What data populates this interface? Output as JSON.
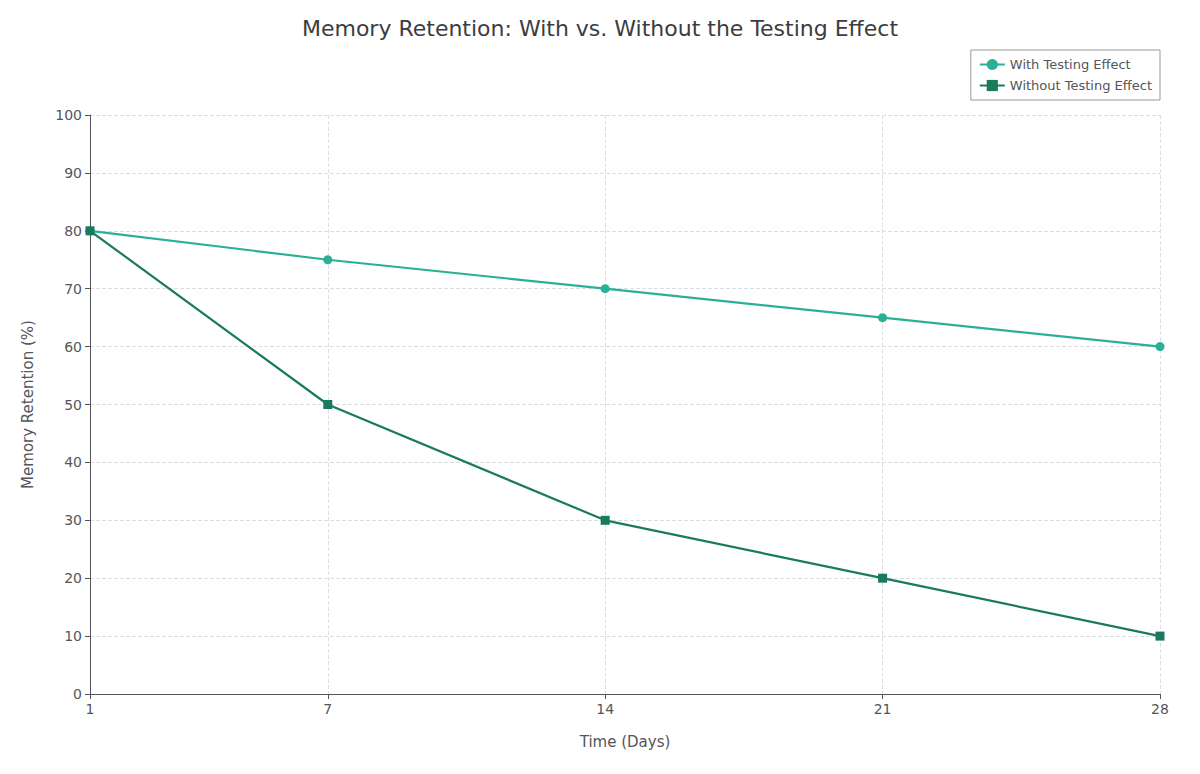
{
  "chart_data": {
    "type": "line",
    "title": "Memory Retention: With vs. Without the Testing Effect",
    "xlabel": "Time (Days)",
    "ylabel": "Memory Retention (%)",
    "x": [
      1,
      7,
      14,
      21,
      28
    ],
    "series": [
      {
        "name": "With Testing Effect",
        "color": "#2ab094",
        "marker": "circle",
        "values": [
          80,
          75,
          70,
          65,
          60
        ]
      },
      {
        "name": "Without Testing Effect",
        "color": "#1a7a5e",
        "marker": "square",
        "values": [
          80,
          50,
          30,
          20,
          10
        ]
      }
    ],
    "xlim": [
      1,
      28
    ],
    "xticks": [
      1,
      7,
      14,
      21,
      28
    ],
    "ylim": [
      0,
      100
    ],
    "yticks": [
      0,
      10,
      20,
      30,
      40,
      50,
      60,
      70,
      80,
      90,
      100
    ],
    "grid": true,
    "legend": "upper right"
  }
}
